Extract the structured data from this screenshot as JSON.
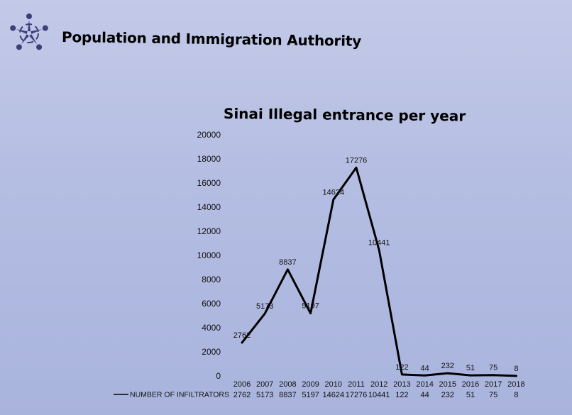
{
  "header": {
    "org_name": "Population and Immigration Authority",
    "logo_icon": "stylized-people-star-logo-icon"
  },
  "colors": {
    "background": "#b4bde2",
    "line": "#000000",
    "logo": "#3a3f7a"
  },
  "chart_data": {
    "type": "line",
    "title": "Sinai Illegal entrance per year",
    "xlabel": "",
    "ylabel": "",
    "categories": [
      "2006",
      "2007",
      "2008",
      "2009",
      "2010",
      "2011",
      "2012",
      "2013",
      "2014",
      "2015",
      "2016",
      "2017",
      "2018"
    ],
    "yticks": [
      "0",
      "2000",
      "4000",
      "6000",
      "8000",
      "10000",
      "12000",
      "14000",
      "16000",
      "18000",
      "20000"
    ],
    "ylim": [
      0,
      20000
    ],
    "grid": false,
    "legend_placement": "bottom (data table)",
    "series": [
      {
        "name": "NUMBER OF INFILTRATORS",
        "values": [
          2762,
          5173,
          8837,
          5197,
          14624,
          17276,
          10441,
          122,
          44,
          232,
          51,
          75,
          8
        ],
        "labels": [
          "2762",
          "5173",
          "8837",
          "5197",
          "14624",
          "17276",
          "10441",
          "122",
          "44",
          "232",
          "51",
          "75",
          "8"
        ]
      }
    ]
  }
}
